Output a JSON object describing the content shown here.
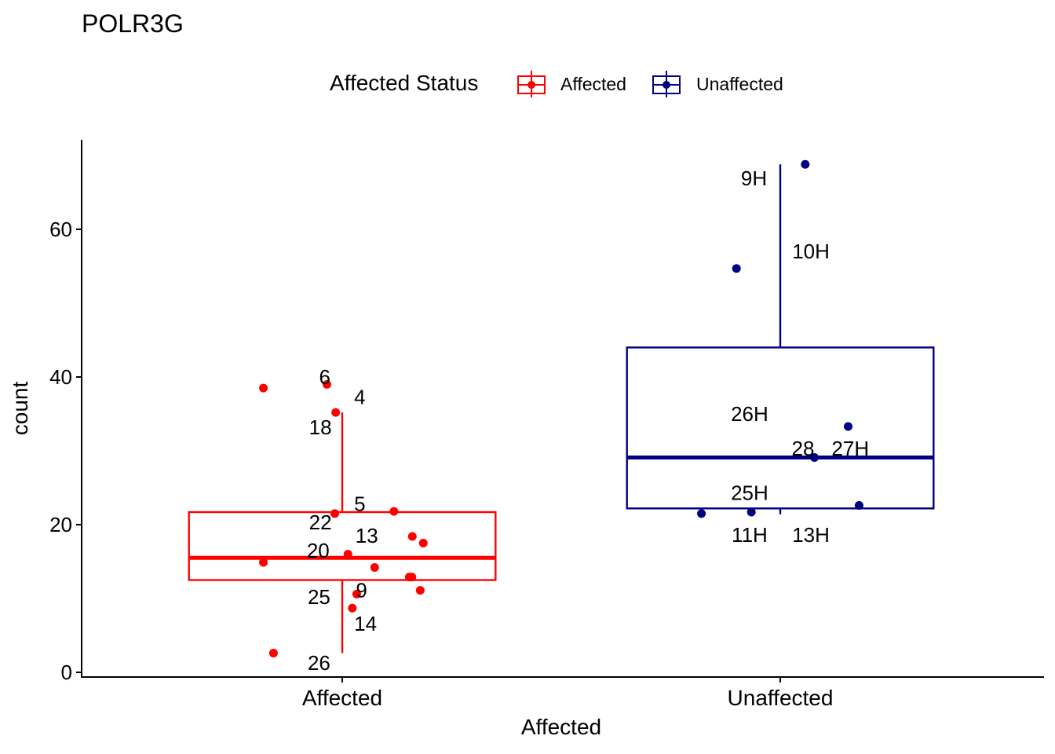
{
  "chart_data": {
    "type": "box",
    "title": "POLR3G",
    "xlabel": "Affected",
    "ylabel": "count",
    "categories": [
      "Affected",
      "Unaffected"
    ],
    "ylim": [
      -0.5,
      72
    ],
    "yticks": [
      0,
      20,
      40,
      60
    ],
    "grid": false,
    "legend": {
      "title": "Affected Status",
      "placement": "top",
      "entries": [
        {
          "label": "Affected",
          "color": "#ff0000"
        },
        {
          "label": "Unaffected",
          "color": "#000080"
        }
      ]
    },
    "boxes": [
      {
        "category": "Affected",
        "color": "#ff0000",
        "whisker_low": 2.6,
        "q1": 12.5,
        "median": 15.5,
        "q3": 21.7,
        "whisker_high": 35.2
      },
      {
        "category": "Unaffected",
        "color": "#000080",
        "whisker_low": 21.4,
        "q1": 22.2,
        "median": 29.1,
        "q3": 44.0,
        "whisker_high": 68.8
      }
    ],
    "points": [
      {
        "category": "Affected",
        "jitter": -0.18,
        "y": 38.5,
        "label": ""
      },
      {
        "category": "Affected",
        "jitter": -0.035,
        "y": 39.0,
        "label": "6"
      },
      {
        "category": "Affected",
        "jitter": -0.015,
        "y": 35.2,
        "label": "18"
      },
      {
        "category": "Affected",
        "jitter": 0.118,
        "y": 21.8,
        "label": "4"
      },
      {
        "category": "Affected",
        "jitter": -0.017,
        "y": 21.5,
        "label": "22"
      },
      {
        "category": "Affected",
        "jitter": 0.16,
        "y": 18.4,
        "label": "5"
      },
      {
        "category": "Affected",
        "jitter": 0.185,
        "y": 17.5,
        "label": ""
      },
      {
        "category": "Affected",
        "jitter": 0.013,
        "y": 16.0,
        "label": "20"
      },
      {
        "category": "Affected",
        "jitter": -0.18,
        "y": 14.9,
        "label": ""
      },
      {
        "category": "Affected",
        "jitter": 0.074,
        "y": 14.2,
        "label": "13"
      },
      {
        "category": "Affected",
        "jitter": 0.153,
        "y": 12.9,
        "label": ""
      },
      {
        "category": "Affected",
        "jitter": 0.159,
        "y": 12.9,
        "label": ""
      },
      {
        "category": "Affected",
        "jitter": 0.178,
        "y": 11.1,
        "label": ""
      },
      {
        "category": "Affected",
        "jitter": 0.033,
        "y": 10.6,
        "label": "25"
      },
      {
        "category": "Affected",
        "jitter": 0.023,
        "y": 8.7,
        "label": "9"
      },
      {
        "category": "Affected",
        "jitter": -0.157,
        "y": 2.6,
        "label": "26"
      },
      {
        "category": "Unaffected",
        "jitter": 0.057,
        "y": 68.8,
        "label": "9H"
      },
      {
        "category": "Unaffected",
        "jitter": -0.1,
        "y": 54.7,
        "label": "10H"
      },
      {
        "category": "Unaffected",
        "jitter": 0.155,
        "y": 33.3,
        "label": "26H"
      },
      {
        "category": "Unaffected",
        "jitter": 0.078,
        "y": 29.1,
        "label": "28"
      },
      {
        "category": "Unaffected",
        "jitter": 0.18,
        "y": 22.6,
        "label": "27H"
      },
      {
        "category": "Unaffected",
        "jitter": -0.18,
        "y": 21.5,
        "label": "25H"
      },
      {
        "category": "Unaffected",
        "jitter": -0.066,
        "y": 21.7,
        "label": "11H"
      }
    ],
    "annotations": [
      {
        "category": "Affected",
        "text": "6",
        "x_offset": -0.04,
        "y": 40.0
      },
      {
        "category": "Affected",
        "text": "4",
        "x_offset": 0.04,
        "y": 37.3
      },
      {
        "category": "Affected",
        "text": "18",
        "x_offset": -0.05,
        "y": 33.2
      },
      {
        "category": "Affected",
        "text": "5",
        "x_offset": 0.04,
        "y": 22.8
      },
      {
        "category": "Affected",
        "text": "22",
        "x_offset": -0.05,
        "y": 20.3
      },
      {
        "category": "Affected",
        "text": "13",
        "x_offset": 0.056,
        "y": 18.5
      },
      {
        "category": "Affected",
        "text": "20",
        "x_offset": -0.055,
        "y": 16.5
      },
      {
        "category": "Affected",
        "text": "9",
        "x_offset": 0.044,
        "y": 11.1
      },
      {
        "category": "Affected",
        "text": "25",
        "x_offset": -0.053,
        "y": 10.2
      },
      {
        "category": "Affected",
        "text": "14",
        "x_offset": 0.053,
        "y": 6.6
      },
      {
        "category": "Affected",
        "text": "26",
        "x_offset": -0.053,
        "y": 1.3
      },
      {
        "category": "Unaffected",
        "text": "9H",
        "x_offset": -0.06,
        "y": 66.9
      },
      {
        "category": "Unaffected",
        "text": "10H",
        "x_offset": 0.07,
        "y": 57.0
      },
      {
        "category": "Unaffected",
        "text": "26H",
        "x_offset": -0.07,
        "y": 35.0
      },
      {
        "category": "Unaffected",
        "text": "28",
        "x_offset": 0.052,
        "y": 30.3
      },
      {
        "category": "Unaffected",
        "text": "27H",
        "x_offset": 0.16,
        "y": 30.3
      },
      {
        "category": "Unaffected",
        "text": "25H",
        "x_offset": -0.07,
        "y": 24.3
      },
      {
        "category": "Unaffected",
        "text": "11H",
        "x_offset": -0.07,
        "y": 18.6
      },
      {
        "category": "Unaffected",
        "text": "13H",
        "x_offset": 0.07,
        "y": 18.6
      }
    ]
  }
}
